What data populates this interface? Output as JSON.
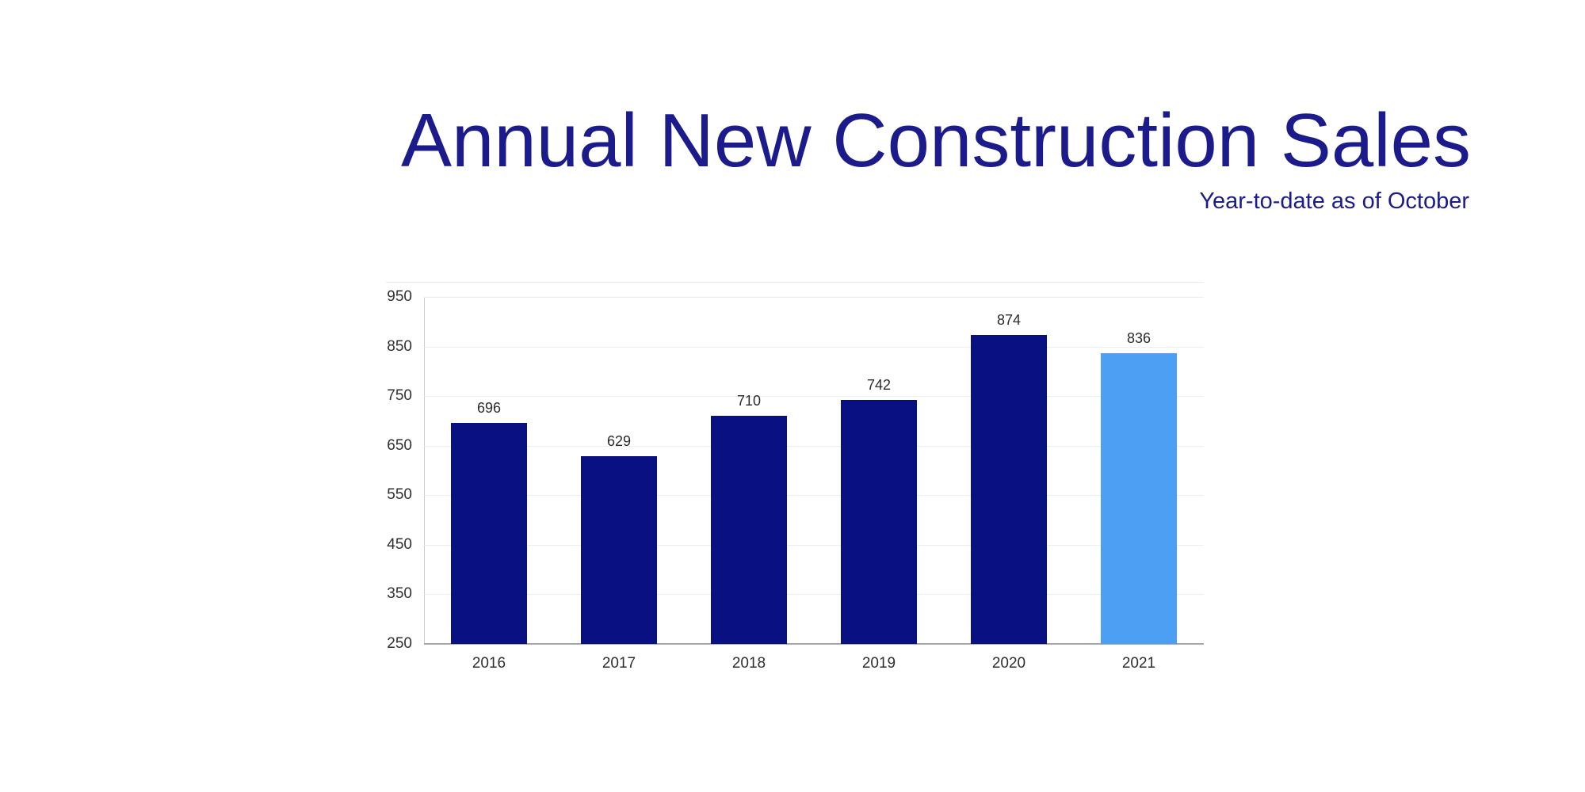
{
  "slide": {
    "title": "Annual New Construction Sales",
    "subtitle": "Year-to-date as of October"
  },
  "colors": {
    "title_navy": "#1b1b8c",
    "bar_default": "#081082",
    "bar_highlight": "#4d9ff3",
    "data_label": "#2b2b2b",
    "tick_label": "#2f2f2f",
    "gridline": "#e8eff4",
    "axis_bottom": "#a6a9ac",
    "axis_left": "#c7ccd2"
  },
  "chart_data": {
    "type": "bar",
    "title": "Annual New Construction Sales",
    "subtitle": "Year-to-date as of October",
    "categories": [
      "2016",
      "2017",
      "2018",
      "2019",
      "2020",
      "2021"
    ],
    "values": [
      696,
      629,
      710,
      742,
      874,
      836
    ],
    "data_labels": [
      "696",
      "629",
      "710",
      "742",
      "874",
      "836"
    ],
    "highlight_index": 5,
    "xlabel": "",
    "ylabel": "",
    "ylim": [
      250,
      950
    ],
    "yticks": [
      250,
      350,
      450,
      550,
      650,
      750,
      850,
      950
    ],
    "ytick_step": 100,
    "grid": true,
    "legend": false
  }
}
